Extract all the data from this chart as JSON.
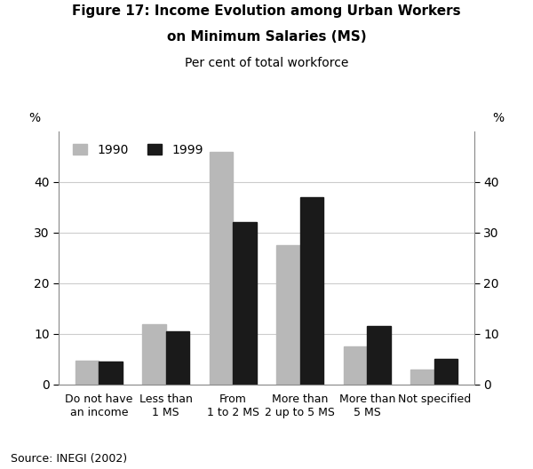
{
  "title_line1": "Figure 17: Income Evolution among Urban Workers",
  "title_line2": "on Minimum Salaries (MS)",
  "subtitle": "Per cent of total workforce",
  "categories": [
    "Do not have\nan income",
    "Less than\n1 MS",
    "From\n1 to 2 MS",
    "More than\n2 up to 5 MS",
    "More than\n5 MS",
    "Not specified"
  ],
  "values_1990": [
    4.8,
    12.0,
    46.0,
    27.5,
    7.5,
    3.0
  ],
  "values_1999": [
    4.6,
    10.5,
    32.0,
    37.0,
    11.5,
    5.0
  ],
  "color_1990": "#b8b8b8",
  "color_1999": "#1a1a1a",
  "ylim": [
    0,
    50
  ],
  "yticks": [
    0,
    10,
    20,
    30,
    40
  ],
  "source": "Source: INEGI (2002)",
  "legend_labels": [
    "1990",
    "1999"
  ],
  "bar_width": 0.35,
  "background_color": "#ffffff"
}
